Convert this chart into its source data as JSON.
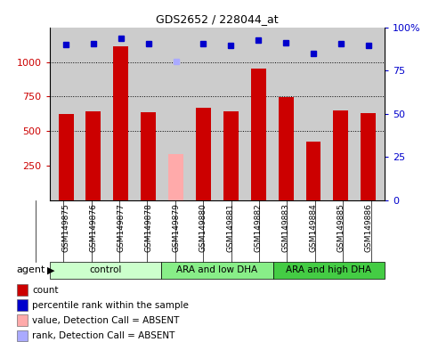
{
  "title": "GDS2652 / 228044_at",
  "samples": [
    "GSM149875",
    "GSM149876",
    "GSM149877",
    "GSM149878",
    "GSM149879",
    "GSM149880",
    "GSM149881",
    "GSM149882",
    "GSM149883",
    "GSM149884",
    "GSM149885",
    "GSM149886"
  ],
  "bar_values": [
    620,
    640,
    1110,
    635,
    null,
    665,
    645,
    950,
    745,
    420,
    650,
    630
  ],
  "bar_absent_values": [
    null,
    null,
    null,
    null,
    335,
    null,
    null,
    null,
    null,
    null,
    null,
    null
  ],
  "percentile_values": [
    1125,
    1130,
    1170,
    1130,
    null,
    1130,
    1120,
    1155,
    1140,
    1060,
    1130,
    1120
  ],
  "percentile_absent_values": [
    null,
    null,
    null,
    null,
    1005,
    null,
    null,
    null,
    null,
    null,
    null,
    null
  ],
  "bar_color": "#cc0000",
  "bar_absent_color": "#ffaaaa",
  "percentile_color": "#0000cc",
  "percentile_absent_color": "#aaaaff",
  "ylim_left": [
    0,
    1250
  ],
  "ylim_right": [
    0,
    100
  ],
  "yticks_left": [
    250,
    500,
    750,
    1000
  ],
  "yticks_right": [
    0,
    25,
    50,
    75,
    100
  ],
  "ytick_labels_right": [
    "0",
    "25",
    "50",
    "75",
    "100%"
  ],
  "grid_values": [
    500,
    750,
    1000
  ],
  "groups": [
    {
      "label": "control",
      "start": 0,
      "end": 3,
      "color": "#ccffcc"
    },
    {
      "label": "ARA and low DHA",
      "start": 4,
      "end": 7,
      "color": "#88ee88"
    },
    {
      "label": "ARA and high DHA",
      "start": 8,
      "end": 11,
      "color": "#44cc44"
    }
  ],
  "agent_label": "agent",
  "plot_bg_color": "#cccccc",
  "sample_area_color": "#cccccc",
  "legend_items": [
    {
      "color": "#cc0000",
      "label": "count"
    },
    {
      "color": "#0000cc",
      "label": "percentile rank within the sample"
    },
    {
      "color": "#ffaaaa",
      "label": "value, Detection Call = ABSENT"
    },
    {
      "color": "#aaaaff",
      "label": "rank, Detection Call = ABSENT"
    }
  ]
}
